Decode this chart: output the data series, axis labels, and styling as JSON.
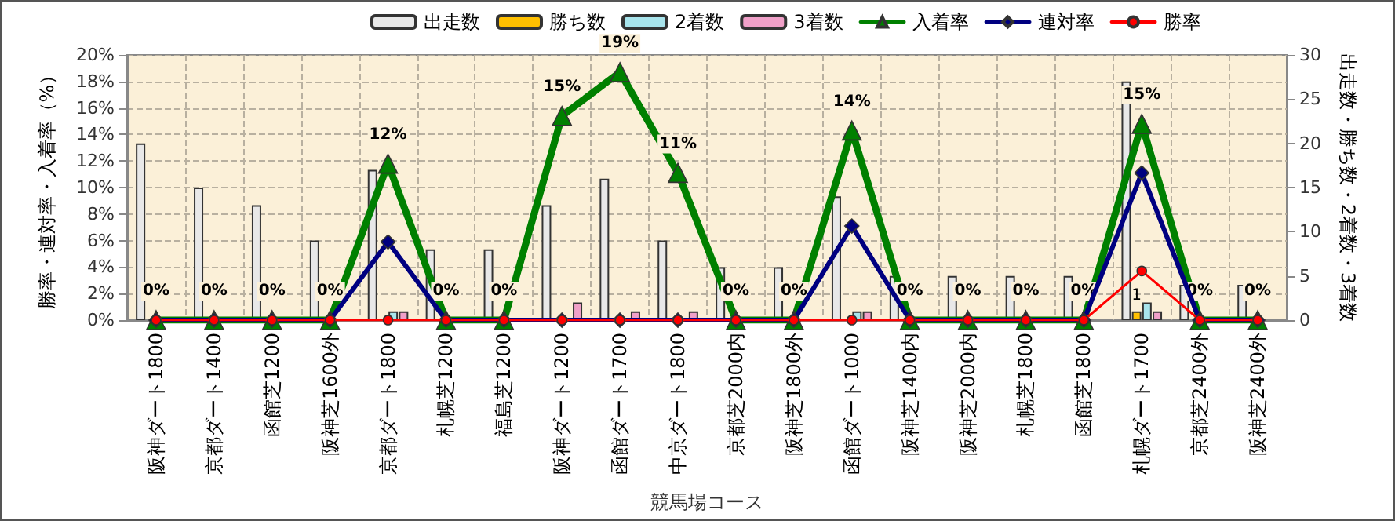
{
  "chart_data": {
    "type": "bar",
    "xlabel": "競馬場コース",
    "ylabel": "勝率・連対率・入着率（%）",
    "y2label": "出走数・勝ち数・2着数・3着数",
    "categories": [
      "阪神ダート1800",
      "京都ダート1400",
      "函館芝1200",
      "阪神芝1600外",
      "京都ダート1800",
      "札幌芝1200",
      "福島芝1200",
      "阪神ダート1200",
      "函館ダート1700",
      "中京ダート1800",
      "京都芝2000内",
      "阪神芝1800外",
      "函館ダート1000",
      "阪神芝1400内",
      "阪神芝2000内",
      "札幌芝1800",
      "函館芝1800",
      "札幌ダート1700",
      "京都芝2400外",
      "阪神芝2400外"
    ],
    "series": [
      {
        "name": "出走数",
        "axis": "y2",
        "color": "#e8e8e8",
        "values": [
          20,
          15,
          13,
          9,
          17,
          8,
          8,
          13,
          16,
          9,
          6,
          6,
          14,
          5,
          5,
          5,
          5,
          27,
          4,
          4
        ]
      },
      {
        "name": "勝ち数",
        "axis": "y2",
        "color": "#ffc000",
        "values": [
          0,
          0,
          0,
          0,
          0,
          0,
          0,
          0,
          0,
          0,
          0,
          0,
          0,
          0,
          0,
          0,
          0,
          1,
          0,
          0
        ],
        "value_labels": [
          null,
          null,
          null,
          null,
          null,
          null,
          null,
          null,
          null,
          null,
          null,
          null,
          null,
          null,
          null,
          null,
          null,
          "1",
          null,
          null
        ]
      },
      {
        "name": "2着数",
        "axis": "y2",
        "color": "#a8e4ec",
        "values": [
          0,
          0,
          0,
          0,
          1,
          0,
          0,
          0,
          0,
          0,
          0,
          0,
          1,
          0,
          0,
          0,
          0,
          2,
          0,
          0
        ]
      },
      {
        "name": "3着数",
        "axis": "y2",
        "color": "#f0a0c8",
        "values": [
          0,
          0,
          0,
          0,
          1,
          0,
          0,
          2,
          1,
          1,
          0,
          0,
          1,
          0,
          0,
          0,
          0,
          1,
          0,
          0
        ]
      },
      {
        "name": "入着率",
        "type": "line",
        "marker": "triangle",
        "color": "#008000",
        "values": [
          0,
          0,
          0,
          0,
          11.8,
          0,
          0,
          15.4,
          18.7,
          11.1,
          0,
          0,
          14.3,
          0,
          0,
          0,
          0,
          14.8,
          0,
          0
        ],
        "value_labels": [
          "0%",
          "0%",
          "0%",
          "0%",
          "12%",
          "0%",
          "0%",
          "15%",
          "19%",
          "11%",
          "0%",
          "0%",
          "14%",
          "0%",
          "0%",
          "0%",
          "0%",
          "15%",
          "0%",
          "0%"
        ]
      },
      {
        "name": "連対率",
        "type": "line",
        "marker": "diamond",
        "color": "#000080",
        "values": [
          0,
          0,
          0,
          0,
          5.9,
          0,
          0,
          0,
          0,
          0,
          0,
          0,
          7.1,
          0,
          0,
          0,
          0,
          11.1,
          0,
          0
        ]
      },
      {
        "name": "勝率",
        "type": "line",
        "marker": "circle",
        "color": "#ff0000",
        "values": [
          0,
          0,
          0,
          0,
          0,
          0,
          0,
          0,
          0,
          0,
          0,
          0,
          0,
          0,
          0,
          0,
          0,
          3.7,
          0,
          0
        ]
      }
    ],
    "ylim": [
      0,
      20
    ],
    "yticks": [
      {
        "value": 0,
        "label": "0%"
      },
      {
        "value": 2,
        "label": "2%"
      },
      {
        "value": 4,
        "label": "4%"
      },
      {
        "value": 6,
        "label": "6%"
      },
      {
        "value": 8,
        "label": "8%"
      },
      {
        "value": 10,
        "label": "10%"
      },
      {
        "value": 12,
        "label": "12%"
      },
      {
        "value": 14,
        "label": "14%"
      },
      {
        "value": 16,
        "label": "16%"
      },
      {
        "value": 18,
        "label": "18%"
      },
      {
        "value": 20,
        "label": "20%"
      }
    ],
    "y2lim": [
      0,
      30
    ],
    "y2ticks": [
      0,
      5,
      10,
      15,
      20,
      25,
      30
    ],
    "grid": true,
    "legend": "top",
    "line_style": "solid"
  }
}
